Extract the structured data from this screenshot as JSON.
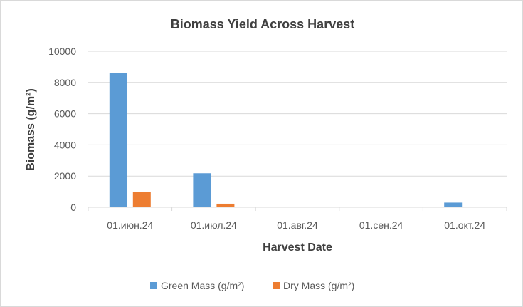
{
  "chart_data": {
    "type": "bar",
    "title": "Biomass Yield Across Harvest",
    "xlabel": "Harvest Date",
    "ylabel": "Biomass (g/m²)",
    "categories": [
      "01.июн.24",
      "01.июл.24",
      "01.авг.24",
      "01.сен.24",
      "01.окт.24"
    ],
    "series": [
      {
        "name": "Green Mass (g/m²)",
        "color": "#5B9BD5",
        "values": [
          8600,
          2180,
          0,
          0,
          300
        ]
      },
      {
        "name": "Dry Mass (g/m²)",
        "color": "#ED7D31",
        "values": [
          960,
          230,
          0,
          0,
          0
        ]
      }
    ],
    "ylim": [
      0,
      10000
    ],
    "yticks": [
      "0",
      "2000",
      "4000",
      "6000",
      "8000",
      "10000"
    ],
    "grid": true,
    "legend_position": "bottom"
  }
}
